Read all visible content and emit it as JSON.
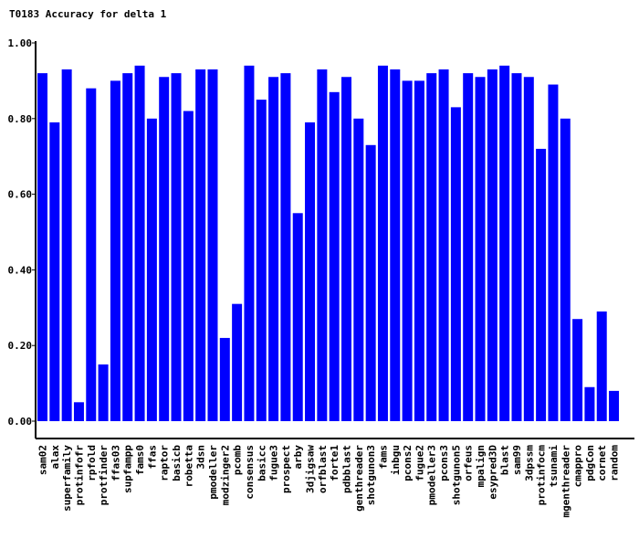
{
  "chart_data": {
    "type": "bar",
    "title": "T0183 Accuracy for delta 1",
    "xlabel": "",
    "ylabel": "",
    "ylim": [
      0,
      1
    ],
    "yticks": [
      "0.00",
      "0.20",
      "0.40",
      "0.60",
      "0.80",
      "1.00"
    ],
    "grid": false,
    "bar_color": "#0000ff",
    "categories": [
      "sam02",
      "alax",
      "superfamily",
      "protinfofr",
      "rpfold",
      "protfinder",
      "ffas03",
      "supfampp",
      "fams0",
      "ffas",
      "raptor",
      "basicb",
      "robetta",
      "3dsn",
      "pmodeller",
      "modzinger2",
      "pcomb",
      "consensus",
      "basicc",
      "fugue3",
      "prospect",
      "arby",
      "3djigsaw",
      "orfblast",
      "forte1",
      "pdbblast",
      "genthreader",
      "shotgunon3",
      "fams",
      "inbgu",
      "pcons2",
      "fugue2",
      "pmodeller3",
      "pcons3",
      "shotgunon5",
      "orfeus",
      "mpalign",
      "esypred3D",
      "blast",
      "sam99",
      "3dpssm",
      "protinfocm",
      "tsunami",
      "mgenthreader",
      "cmappro",
      "pdgCon",
      "cornet",
      "random"
    ],
    "values": [
      0.92,
      0.79,
      0.93,
      0.05,
      0.88,
      0.15,
      0.9,
      0.92,
      0.94,
      0.8,
      0.91,
      0.92,
      0.82,
      0.93,
      0.93,
      0.22,
      0.31,
      0.94,
      0.85,
      0.91,
      0.92,
      0.55,
      0.79,
      0.93,
      0.87,
      0.91,
      0.8,
      0.73,
      0.94,
      0.93,
      0.9,
      0.9,
      0.92,
      0.93,
      0.83,
      0.92,
      0.91,
      0.93,
      0.94,
      0.92,
      0.91,
      0.72,
      0.89,
      0.8,
      0.27,
      0.09,
      0.29,
      0.08
    ]
  }
}
